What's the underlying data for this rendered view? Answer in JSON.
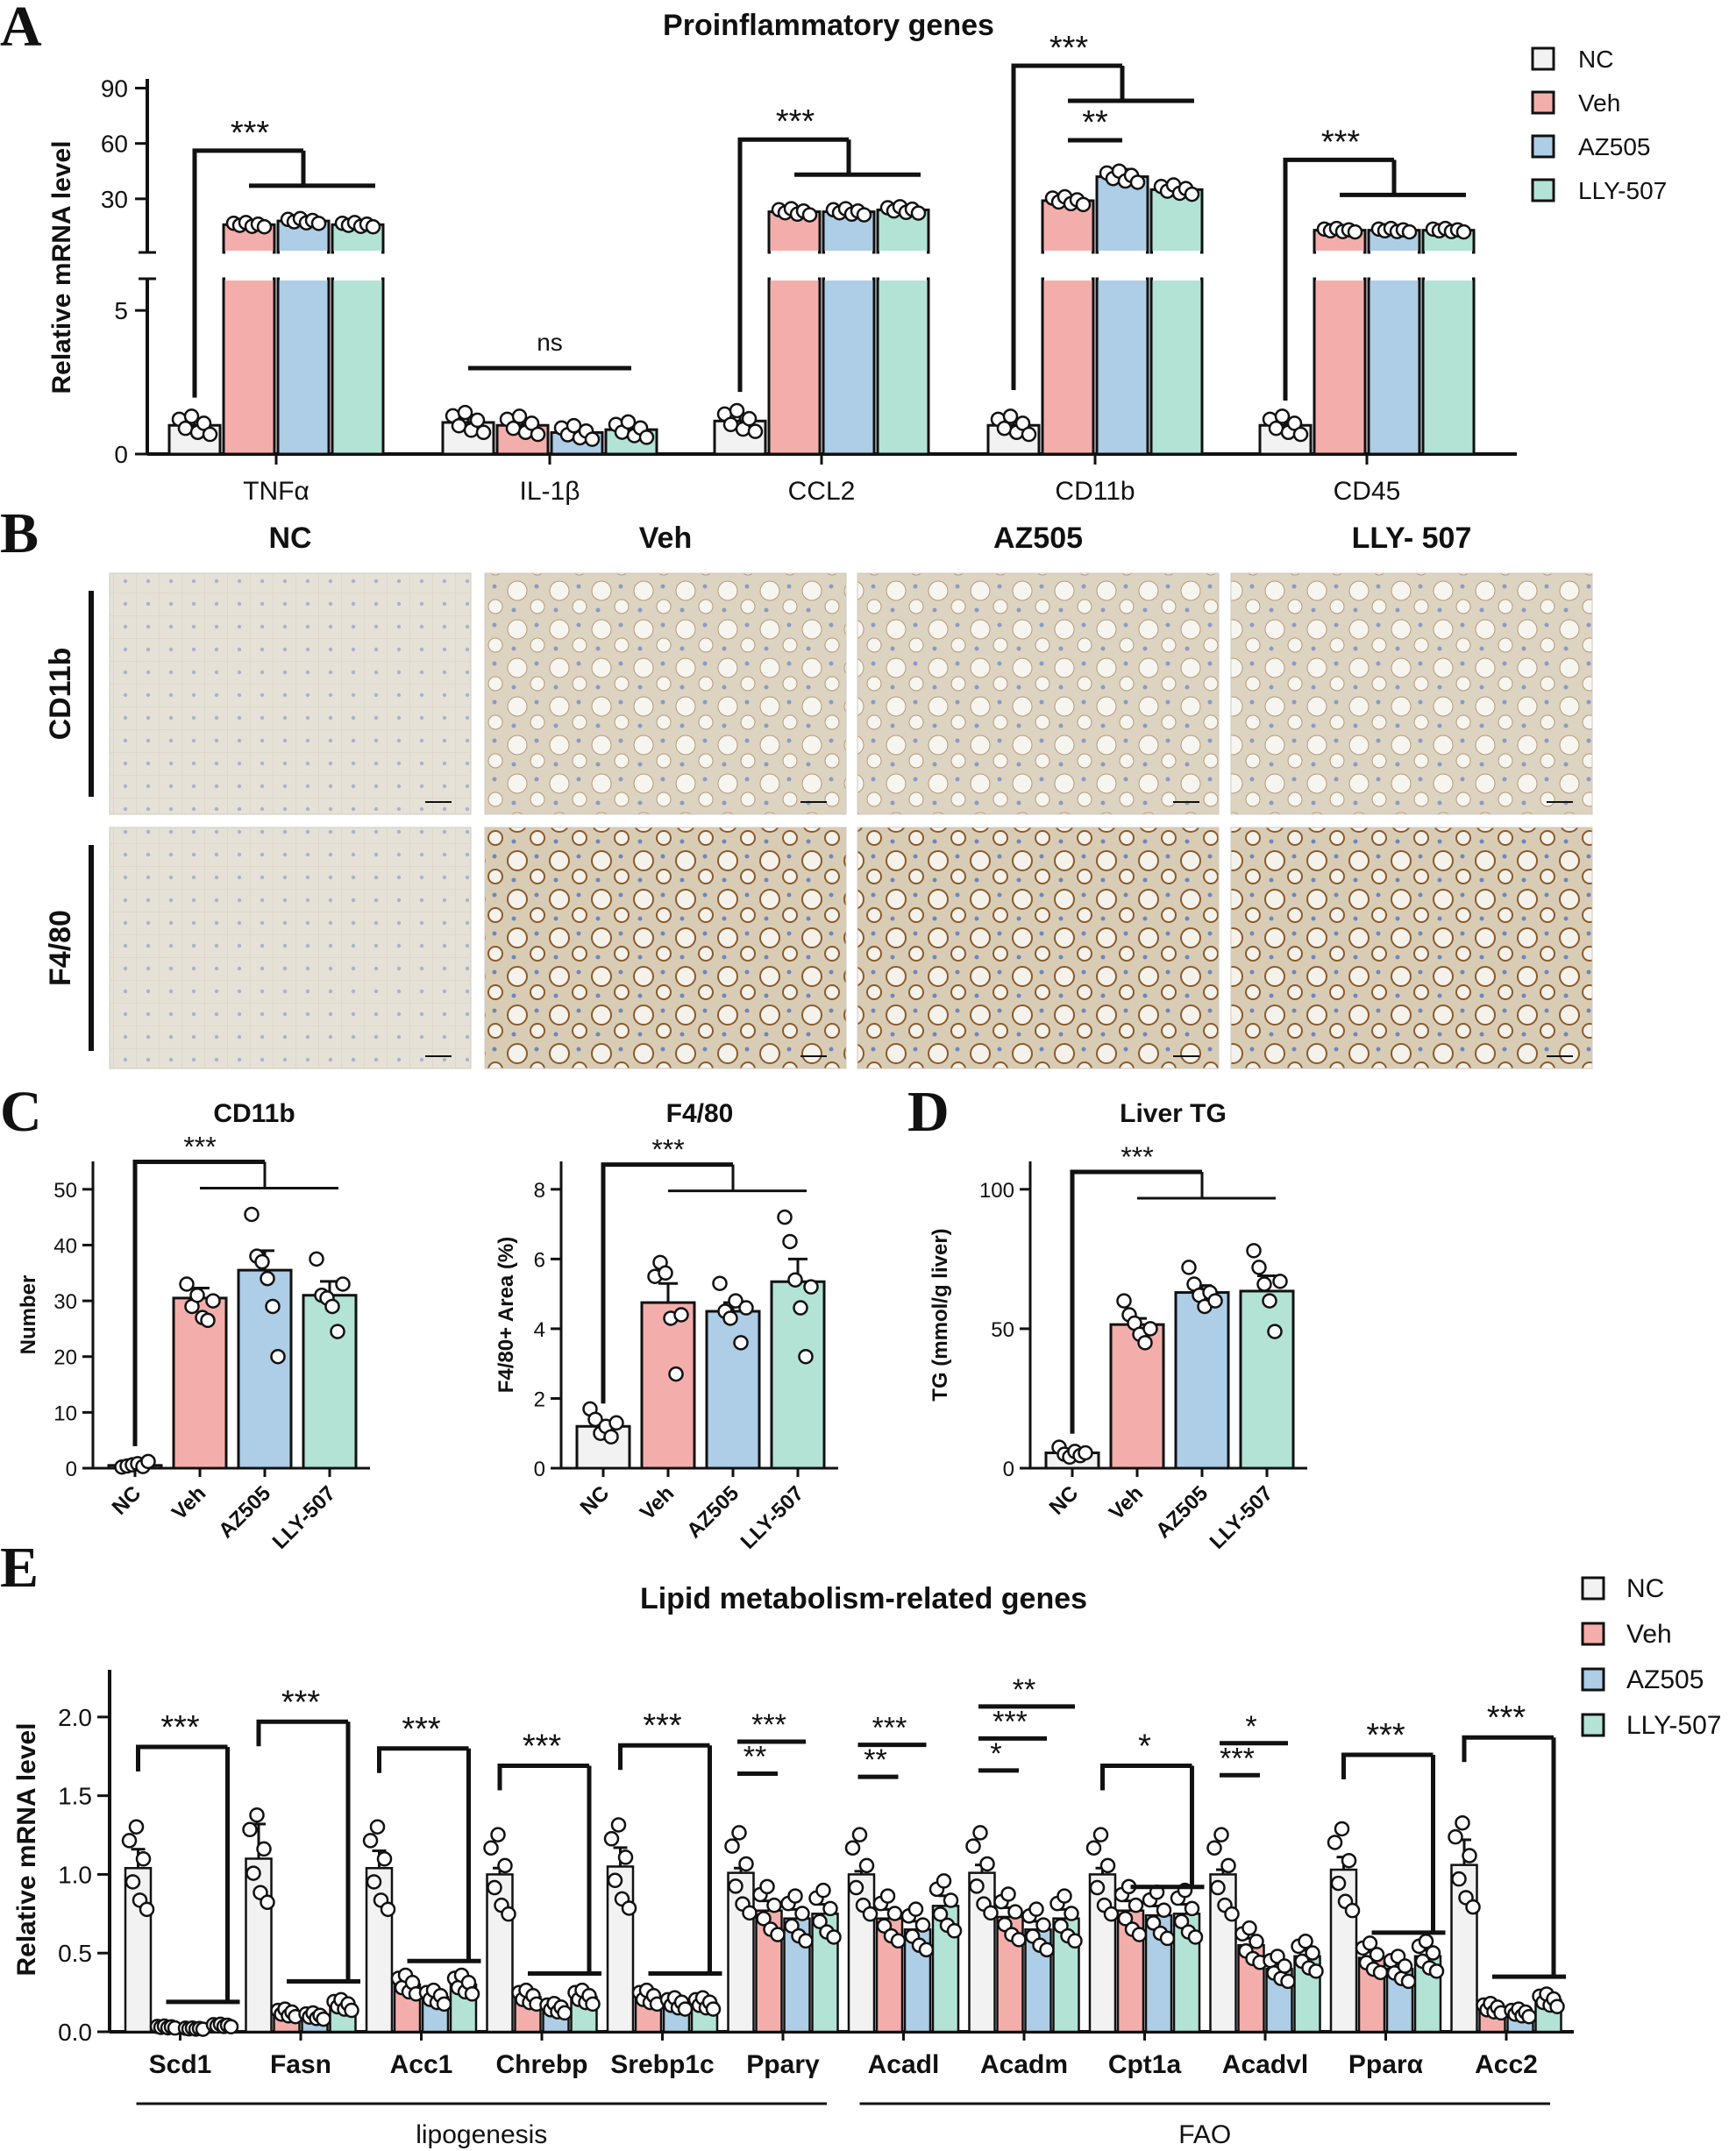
{
  "panel_letters": [
    "A",
    "B",
    "C",
    "D",
    "E"
  ],
  "colors": {
    "NC": "#f2f2f2",
    "Veh": "#f3aeac",
    "AZ505": "#aecde6",
    "LLY-507": "#b3e3d5",
    "axis": "#111111"
  },
  "chart_data": [
    {
      "id": "A",
      "type": "bar",
      "title": "Proinflammatory genes",
      "ylabel": "Relative mRNA level",
      "categories": [
        "TNFα",
        "IL-1β",
        "CCL2",
        "CD11b",
        "CD45"
      ],
      "y_axis_break": {
        "lower_range": [
          0,
          6.5
        ],
        "upper_range": [
          0,
          95
        ]
      },
      "yticks_lower": [
        "0",
        "5"
      ],
      "yticks_upper": [
        "30",
        "60",
        "90"
      ],
      "legend": {
        "placement": "top-right",
        "entries": [
          "NC",
          "Veh",
          "AZ505",
          "LLY-507"
        ]
      },
      "series": [
        {
          "name": "NC",
          "values": [
            1.0,
            1.1,
            1.15,
            1.0,
            1.0
          ],
          "errors": [
            0.2,
            0.25,
            0.25,
            0.12,
            0.1
          ]
        },
        {
          "name": "Veh",
          "values": [
            16,
            1.0,
            23,
            29,
            13
          ],
          "errors": [
            1.5,
            0.1,
            2,
            2,
            1
          ]
        },
        {
          "name": "AZ505",
          "values": [
            18,
            0.75,
            23,
            42,
            13
          ],
          "errors": [
            1.5,
            0.05,
            1.5,
            4,
            1
          ]
        },
        {
          "name": "LLY-507",
          "values": [
            16,
            0.85,
            24,
            35,
            13
          ],
          "errors": [
            1.5,
            0.1,
            2,
            3,
            1
          ]
        }
      ],
      "annotations": [
        {
          "category": "TNFα",
          "text": "***"
        },
        {
          "category": "IL-1β",
          "text": "ns"
        },
        {
          "category": "CCL2",
          "text": "***"
        },
        {
          "category": "CD11b",
          "text": "***"
        },
        {
          "category": "CD11b",
          "text": "**"
        },
        {
          "category": "CD45",
          "text": "***"
        }
      ]
    },
    {
      "id": "B",
      "type": "image_grid",
      "columns": [
        "NC",
        "Veh",
        "AZ505",
        "LLY- 507"
      ],
      "rows": [
        "CD11b",
        "F4/80"
      ]
    },
    {
      "id": "C1",
      "type": "bar",
      "title": "CD11b",
      "ylabel": "Number",
      "categories": [
        "NC",
        "Veh",
        "AZ505",
        "LLY-507"
      ],
      "ylim": [
        0,
        55
      ],
      "yticks": [
        0,
        10,
        20,
        30,
        40,
        50
      ],
      "values": [
        0.5,
        30.5,
        35.5,
        31
      ],
      "errors": [
        0.3,
        1.8,
        3.5,
        2.5
      ],
      "points": [
        [
          0.2,
          0.4,
          0.6,
          0.8,
          0.3,
          1.2
        ],
        [
          33,
          29,
          31,
          27,
          26.5,
          30
        ],
        [
          45.5,
          38,
          37,
          34,
          29,
          20
        ],
        [
          37.5,
          31,
          30.5,
          29,
          24.5,
          33
        ]
      ],
      "annotations": [
        "***"
      ]
    },
    {
      "id": "C2",
      "type": "bar",
      "title": "F4/80",
      "ylabel": "F4/80+ Area (%)",
      "categories": [
        "NC",
        "Veh",
        "AZ505",
        "LLY-507"
      ],
      "ylim": [
        0,
        8.8
      ],
      "yticks": [
        0,
        2,
        4,
        6,
        8
      ],
      "values": [
        1.2,
        4.75,
        4.5,
        5.35
      ],
      "errors": [
        0.15,
        0.55,
        0.25,
        0.65
      ],
      "points": [
        [
          1.7,
          1.4,
          1.0,
          1.2,
          0.9,
          1.3
        ],
        [
          5.5,
          5.9,
          5.6,
          4.3,
          2.7,
          4.4
        ],
        [
          5.3,
          4.5,
          4.3,
          4.8,
          3.6,
          4.6
        ],
        [
          7.2,
          6.5,
          5.4,
          4.6,
          3.2,
          5.2
        ]
      ],
      "annotations": [
        "***"
      ]
    },
    {
      "id": "D",
      "type": "bar",
      "title": "Liver TG",
      "ylabel": "TG (mmol/g liver)",
      "categories": [
        "NC",
        "Veh",
        "AZ505",
        "LLY-507"
      ],
      "ylim": [
        0,
        110
      ],
      "yticks": [
        0,
        50,
        100
      ],
      "values": [
        5.5,
        51.5,
        63,
        63.5
      ],
      "errors": [
        0.6,
        2.2,
        2.5,
        5.5
      ],
      "points": [
        [
          7.5,
          5,
          4,
          6,
          4.5,
          5.5
        ],
        [
          60,
          55,
          52,
          48,
          45,
          50
        ],
        [
          72,
          66,
          62,
          58,
          63,
          60
        ],
        [
          78,
          72,
          66,
          60,
          49,
          67
        ]
      ],
      "annotations": [
        "***"
      ]
    },
    {
      "id": "E",
      "type": "bar",
      "title": "Lipid metabolism-related genes",
      "ylabel": "Relative mRNA level",
      "categories": [
        "Scd1",
        "Fasn",
        "Acc1",
        "Chrebp",
        "Srebp1c",
        "Pparγ",
        "Acadl",
        "Acadm",
        "Cpt1a",
        "Acadvl",
        "Pparα",
        "Acc2"
      ],
      "ylim": [
        0,
        2.3
      ],
      "yticks": [
        "0.0",
        "0.5",
        "1.0",
        "1.5",
        "2.0"
      ],
      "group_labels": [
        {
          "text": "lipogenesis",
          "from": "Scd1",
          "to": "Pparγ"
        },
        {
          "text": "FAO",
          "from": "Acadl",
          "to": "Acc2"
        }
      ],
      "legend": {
        "placement": "top-right",
        "entries": [
          "NC",
          "Veh",
          "AZ505",
          "LLY-507"
        ]
      },
      "series": [
        {
          "name": "NC",
          "values": [
            1.04,
            1.1,
            1.04,
            1.0,
            1.05,
            1.01,
            1.0,
            1.01,
            1.0,
            1.0,
            1.03,
            1.06
          ],
          "errors": [
            0.12,
            0.22,
            0.11,
            0.04,
            0.12,
            0.03,
            0.02,
            0.05,
            0.04,
            0.03,
            0.08,
            0.16
          ]
        },
        {
          "name": "Veh",
          "values": [
            0.03,
            0.12,
            0.3,
            0.22,
            0.22,
            0.77,
            0.72,
            0.73,
            0.77,
            0.55,
            0.47,
            0.15
          ]
        },
        {
          "name": "AZ505",
          "values": [
            0.02,
            0.1,
            0.22,
            0.15,
            0.18,
            0.72,
            0.65,
            0.65,
            0.74,
            0.4,
            0.4,
            0.12
          ]
        },
        {
          "name": "LLY-507",
          "values": [
            0.04,
            0.17,
            0.3,
            0.22,
            0.18,
            0.75,
            0.8,
            0.72,
            0.75,
            0.48,
            0.48,
            0.2
          ]
        }
      ],
      "annotations": [
        {
          "category": "Scd1",
          "text": "***"
        },
        {
          "category": "Fasn",
          "text": "***"
        },
        {
          "category": "Acc1",
          "text": "***"
        },
        {
          "category": "Chrebp",
          "text": "***"
        },
        {
          "category": "Srebp1c",
          "text": "***"
        },
        {
          "category": "Pparγ",
          "text": "**"
        },
        {
          "category": "Pparγ",
          "text": "***"
        },
        {
          "category": "Acadl",
          "text": "**"
        },
        {
          "category": "Acadl",
          "text": "***"
        },
        {
          "category": "Acadm",
          "text": "*"
        },
        {
          "category": "Acadm",
          "text": "***"
        },
        {
          "category": "Acadm",
          "text": "**"
        },
        {
          "category": "Cpt1a",
          "text": "*"
        },
        {
          "category": "Acadvl",
          "text": "***"
        },
        {
          "category": "Acadvl",
          "text": "*"
        },
        {
          "category": "Pparα",
          "text": "***"
        },
        {
          "category": "Acc2",
          "text": "***"
        }
      ]
    }
  ]
}
